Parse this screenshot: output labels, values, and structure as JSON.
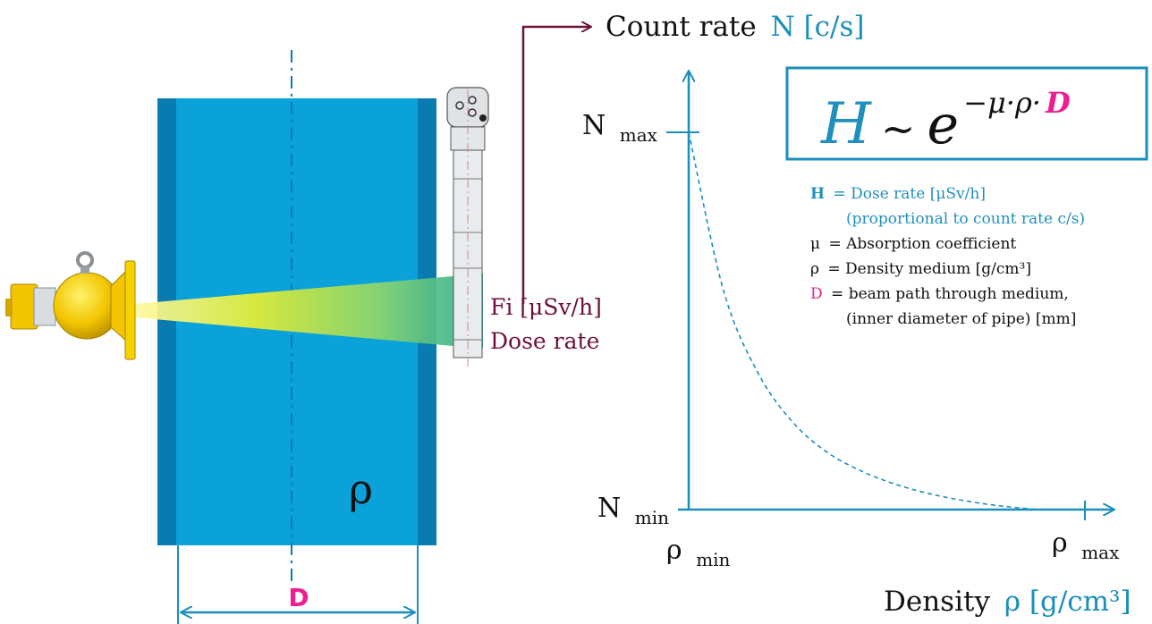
{
  "colors": {
    "pipe_blue": "#0ba1db",
    "pipe_edge": "#0a7bb1",
    "axis_blue": "#1a8ebc",
    "maroon": "#6e0f3c",
    "magenta": "#ef1e8f",
    "formula_blue": "#1f8fbd",
    "detector_grey": "#cfd3d6",
    "source_yellow": "#f5d200"
  },
  "pipe": {
    "density_symbol": "ρ",
    "diameter_symbol": "D"
  },
  "detector": {
    "line1": "Fi [μSv/h]",
    "line2": "Dose rate"
  },
  "chart_data": {
    "type": "line",
    "title": "",
    "ylabel": {
      "text": "Count rate",
      "symbol": "N [c/s]"
    },
    "xlabel": {
      "text": "Density",
      "symbol": "ρ [g/cm³]"
    },
    "y_ticks": [
      {
        "main": "N",
        "sub": "max"
      },
      {
        "main": "N",
        "sub": "min"
      }
    ],
    "x_ticks": [
      {
        "main": "ρ",
        "sub": "min"
      },
      {
        "main": "ρ",
        "sub": "max"
      }
    ],
    "series": [
      {
        "style": "dashed",
        "x": [
          0,
          0.1,
          0.2,
          0.3,
          0.4,
          0.5,
          0.6,
          0.7,
          0.8,
          0.9,
          1.0
        ],
        "y": [
          1.0,
          0.58,
          0.36,
          0.23,
          0.15,
          0.1,
          0.065,
          0.04,
          0.022,
          0.009,
          0.0
        ]
      }
    ]
  },
  "formula": {
    "lhs": "H",
    "tilde": "~",
    "base": "e",
    "exponent": "−μ·ρ·",
    "exponent_d": "D"
  },
  "legend": [
    {
      "symbol": "H",
      "text": "= Dose rate  [μSv/h]"
    },
    {
      "symbol": "",
      "text": "(proportional  to  count rate c/s)"
    },
    {
      "symbol": "μ",
      "text": "= Absorption  coefficient"
    },
    {
      "symbol": "ρ",
      "text": "= Density   medium  [g/cm³]"
    },
    {
      "symbol": "D",
      "text": "= beam path through medium,"
    },
    {
      "symbol": "",
      "text": "(inner  diameter  of pipe)  [mm]"
    }
  ]
}
